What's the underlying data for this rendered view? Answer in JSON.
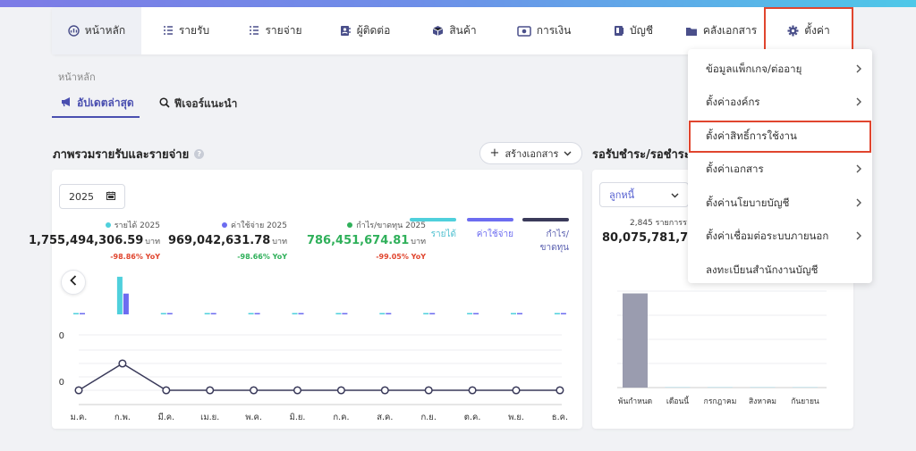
{
  "nav": {
    "items": [
      {
        "label": "หน้าหลัก",
        "icon": "dashboard-icon"
      },
      {
        "label": "รายรับ",
        "icon": "income-list-icon"
      },
      {
        "label": "รายจ่าย",
        "icon": "expense-list-icon"
      },
      {
        "label": "ผู้ติดต่อ",
        "icon": "contacts-icon"
      },
      {
        "label": "สินค้า",
        "icon": "box-icon"
      },
      {
        "label": "การเงิน",
        "icon": "money-icon"
      },
      {
        "label": "บัญชี",
        "icon": "ledger-icon"
      },
      {
        "label": "คลังเอกสาร",
        "icon": "folder-icon"
      },
      {
        "label": "ตั้งค่า",
        "icon": "gear-icon"
      }
    ]
  },
  "breadcrumb": "หน้าหลัก",
  "tabs": [
    {
      "label": "อัปเดตล่าสุด",
      "icon": "megaphone-icon"
    },
    {
      "label": "ฟีเจอร์แนะนำ",
      "icon": "search-icon"
    }
  ],
  "overview": {
    "title": "ภาพรวมรายรับและรายจ่าย",
    "help": "?",
    "create_button": "สร้างเอกสาร",
    "year": "2025",
    "stats": [
      {
        "label": "รายได้ 2025",
        "value": "1,755,494,306.59",
        "unit": "บาท",
        "yoy": "-98.86% YoY",
        "color": "#4fd0dc",
        "yoy_color": "#e0452e"
      },
      {
        "label": "ค่าใช้จ่าย 2025",
        "value": "969,042,631.78",
        "unit": "บาท",
        "yoy": "-98.66% YoY",
        "color": "#6c6cf0",
        "yoy_color": "#2fb05a"
      },
      {
        "label": "กำไร/ขาดทุน 2025",
        "value": "786,451,674.81",
        "unit": "บาท",
        "yoy": "-99.05% YoY",
        "color": "#2fb05a",
        "yoy_color": "#e0452e",
        "value_color": "#2fb05a"
      }
    ],
    "legend": [
      {
        "label": "รายได้",
        "color": "#4fd0dc"
      },
      {
        "label": "ค่าใช้จ่าย",
        "color": "#6c6cf0"
      },
      {
        "label": "กำไร/ขาดทุน",
        "color": "#3a3a5a"
      }
    ]
  },
  "chart_data": [
    {
      "type": "bar",
      "categories": [
        "ม.ค.",
        "ก.พ.",
        "มี.ค.",
        "เม.ย.",
        "พ.ค.",
        "มิ.ย.",
        "ก.ค.",
        "ส.ค.",
        "ก.ย.",
        "ต.ค.",
        "พ.ย.",
        "ธ.ค."
      ],
      "series": [
        {
          "name": "รายได้",
          "values": [
            0.01,
            1.755,
            0.01,
            0.01,
            0.01,
            0.01,
            0.01,
            0.01,
            0.01,
            0.01,
            0.01,
            0.01
          ]
        },
        {
          "name": "ค่าใช้จ่าย",
          "values": [
            0.01,
            0.969,
            0.01,
            0.01,
            0.01,
            0.01,
            0.01,
            0.01,
            0.01,
            0.01,
            0.01,
            0.01
          ]
        }
      ],
      "ylim": [
        0,
        1.8
      ],
      "grid": false
    },
    {
      "type": "line",
      "categories": [
        "ม.ค.",
        "ก.พ.",
        "มี.ค.",
        "เม.ย.",
        "พ.ค.",
        "มิ.ย.",
        "ก.ค.",
        "ส.ค.",
        "ก.ย.",
        "ต.ค.",
        "พ.ย.",
        "ธ.ค."
      ],
      "series": [
        {
          "name": "กำไร/ขาดทุน",
          "values": [
            0,
            0.786,
            0,
            0,
            0,
            0,
            0,
            0,
            0,
            0,
            0,
            0
          ]
        }
      ],
      "yticks": [
        "0",
        "0"
      ],
      "grid": true
    },
    {
      "type": "bar",
      "categories": [
        "พ้นกำหนด",
        "เดือนนี้",
        "กรกฎาคม",
        "สิงหาคม",
        "กันยายน"
      ],
      "values": [
        80.07,
        0.2,
        0.1,
        0.1,
        0.1
      ],
      "ylim": [
        0,
        82
      ],
      "grid": true
    }
  ],
  "receivables": {
    "title": "รอรับชำระ/รอชำระ",
    "select": "ลูกหนี้",
    "count": "2,845 รายการร",
    "amount": "80,075,781,740."
  },
  "settings_menu": {
    "items": [
      {
        "label": "ข้อมูลแพ็กเกจ/ต่ออายุ",
        "chevron": true
      },
      {
        "label": "ตั้งค่าองค์กร",
        "chevron": true
      },
      {
        "label": "ตั้งค่าสิทธิ์การใช้งาน",
        "chevron": false
      },
      {
        "label": "ตั้งค่าเอกสาร",
        "chevron": true
      },
      {
        "label": "ตั้งค่านโยบายบัญชี",
        "chevron": true
      },
      {
        "label": "ตั้งค่าเชื่อมต่อระบบภายนอก",
        "chevron": true
      },
      {
        "label": "ลงทะเบียนสำนักงานบัญชี",
        "chevron": false
      }
    ]
  }
}
